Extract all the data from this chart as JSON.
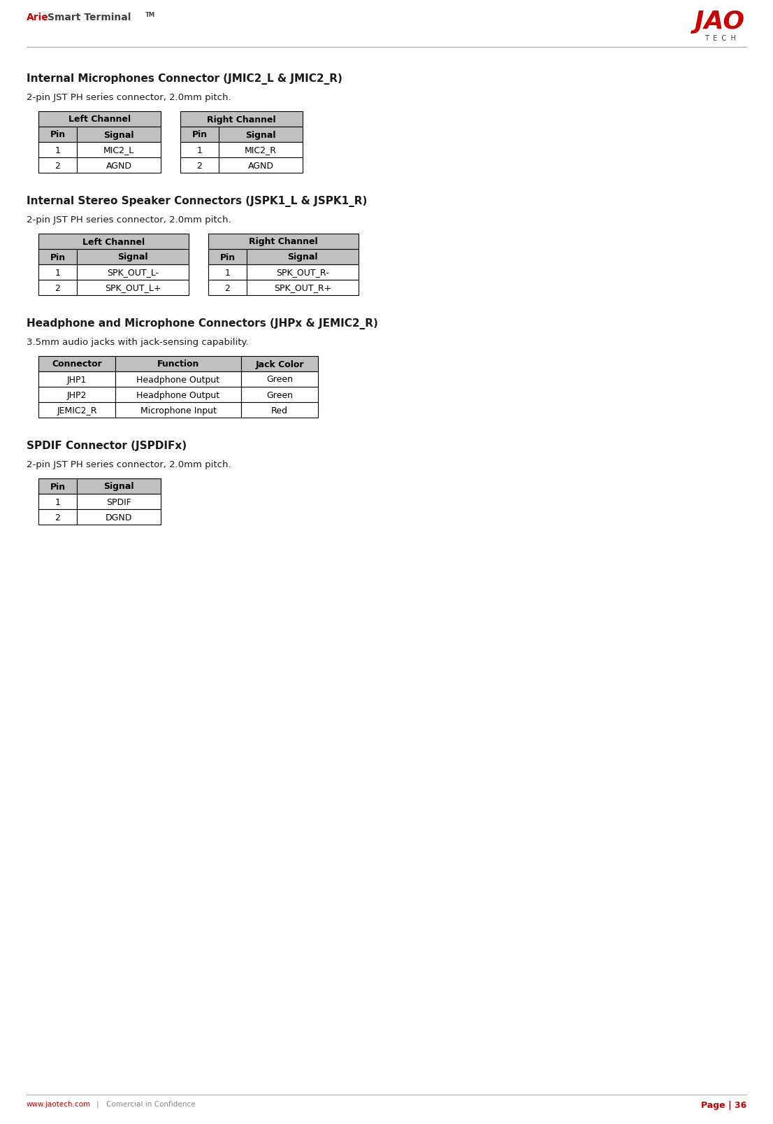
{
  "page_width": 11.06,
  "page_height": 16.08,
  "bg_color": "#ffffff",
  "header_red": "#cc0000",
  "header_gray": "#404040",
  "logo_red": "#cc0000",
  "footer_red": "#cc0000",
  "footer_gray": "#888888",
  "table_header_bg": "#c0c0c0",
  "table_border": "#000000",
  "section1_title": "Internal Microphones Connector (JMIC2_L & JMIC2_R)",
  "section1_subtitle": "2-pin JST PH series connector, 2.0mm pitch.",
  "section1_left_header": "Left Channel",
  "section1_right_header": "Right Channel",
  "section1_col_headers": [
    "Pin",
    "Signal"
  ],
  "section1_left_data": [
    [
      "1",
      "MIC2_L"
    ],
    [
      "2",
      "AGND"
    ]
  ],
  "section1_right_data": [
    [
      "1",
      "MIC2_R"
    ],
    [
      "2",
      "AGND"
    ]
  ],
  "section2_title": "Internal Stereo Speaker Connectors (JSPK1_L & JSPK1_R)",
  "section2_subtitle": "2-pin JST PH series connector, 2.0mm pitch.",
  "section2_left_header": "Left Channel",
  "section2_right_header": "Right Channel",
  "section2_col_headers": [
    "Pin",
    "Signal"
  ],
  "section2_left_data": [
    [
      "1",
      "SPK_OUT_L-"
    ],
    [
      "2",
      "SPK_OUT_L+"
    ]
  ],
  "section2_right_data": [
    [
      "1",
      "SPK_OUT_R-"
    ],
    [
      "2",
      "SPK_OUT_R+"
    ]
  ],
  "section3_title": "Headphone and Microphone Connectors (JHPx & JEMIC2_R)",
  "section3_subtitle": "3.5mm audio jacks with jack-sensing capability.",
  "section3_col_headers": [
    "Connector",
    "Function",
    "Jack Color"
  ],
  "section3_data": [
    [
      "JHP1",
      "Headphone Output",
      "Green"
    ],
    [
      "JHP2",
      "Headphone Output",
      "Green"
    ],
    [
      "JEMIC2_R",
      "Microphone Input",
      "Red"
    ]
  ],
  "section4_title": "SPDIF Connector (JSPDIFx)",
  "section4_subtitle": "2-pin JST PH series connector, 2.0mm pitch.",
  "section4_col_headers": [
    "Pin",
    "Signal"
  ],
  "section4_data": [
    [
      "1",
      "SPDIF"
    ],
    [
      "2",
      "DGND"
    ]
  ],
  "header_text_arie": "Arie",
  "header_text_rest": "Smart Terminal",
  "header_tm": "TM",
  "logo_text": "JAO",
  "logo_subtext": "T  E  C  H",
  "footer_url": "www.jaotech.com",
  "footer_sep": "|",
  "footer_conf": "Comercial in Confidence",
  "footer_page": "Page | 36"
}
